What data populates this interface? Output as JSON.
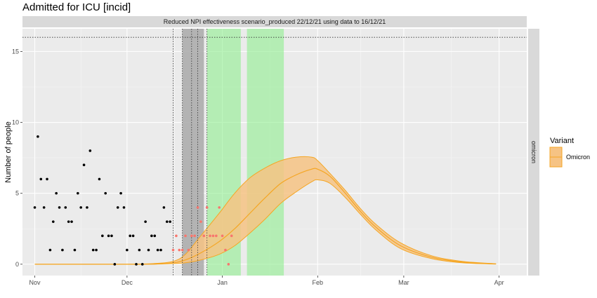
{
  "chart_data": {
    "type": "line",
    "title": "Admitted for ICU [incid]",
    "strip_top": "Reduced NPI effectiveness scenario_produced 22/12/21 using data to 16/12/21",
    "strip_right": "omicron",
    "xlabel": "",
    "ylabel": "Number of people",
    "x_ticks": [
      {
        "label": "Nov",
        "date": "2021-11-01"
      },
      {
        "label": "Dec",
        "date": "2021-12-01"
      },
      {
        "label": "Jan",
        "date": "2022-01-01"
      },
      {
        "label": "Feb",
        "date": "2022-02-01"
      },
      {
        "label": "Mar",
        "date": "2022-03-01"
      },
      {
        "label": "Apr",
        "date": "2022-04-01"
      }
    ],
    "xlim": [
      "2021-10-28",
      "2022-04-10"
    ],
    "y_ticks": [
      0,
      5,
      10,
      15
    ],
    "ylim": [
      -0.8,
      16.6
    ],
    "grid": true,
    "hline_dotted": 16,
    "vlines_dotted": [
      "2021-12-16",
      "2021-12-19",
      "2021-12-22",
      "2021-12-24",
      "2021-12-27"
    ],
    "shaded_grey": {
      "start": "2021-12-19",
      "end": "2021-12-26"
    },
    "shaded_green": [
      {
        "start": "2021-12-27",
        "end": "2022-01-07"
      },
      {
        "start": "2022-01-09",
        "end": "2022-01-21"
      }
    ],
    "observed_black": [
      {
        "x": "2021-11-01",
        "y": 4
      },
      {
        "x": "2021-11-02",
        "y": 9
      },
      {
        "x": "2021-11-03",
        "y": 6
      },
      {
        "x": "2021-11-04",
        "y": 4
      },
      {
        "x": "2021-11-05",
        "y": 6
      },
      {
        "x": "2021-11-06",
        "y": 1
      },
      {
        "x": "2021-11-07",
        "y": 3
      },
      {
        "x": "2021-11-08",
        "y": 5
      },
      {
        "x": "2021-11-09",
        "y": 4
      },
      {
        "x": "2021-11-10",
        "y": 1
      },
      {
        "x": "2021-11-11",
        "y": 4
      },
      {
        "x": "2021-11-12",
        "y": 3
      },
      {
        "x": "2021-11-13",
        "y": 3
      },
      {
        "x": "2021-11-14",
        "y": 1
      },
      {
        "x": "2021-11-15",
        "y": 5
      },
      {
        "x": "2021-11-16",
        "y": 4
      },
      {
        "x": "2021-11-17",
        "y": 7
      },
      {
        "x": "2021-11-18",
        "y": 4
      },
      {
        "x": "2021-11-19",
        "y": 8
      },
      {
        "x": "2021-11-20",
        "y": 1
      },
      {
        "x": "2021-11-21",
        "y": 1
      },
      {
        "x": "2021-11-22",
        "y": 6
      },
      {
        "x": "2021-11-23",
        "y": 2
      },
      {
        "x": "2021-11-24",
        "y": 5
      },
      {
        "x": "2021-11-25",
        "y": 2
      },
      {
        "x": "2021-11-26",
        "y": 2
      },
      {
        "x": "2021-11-27",
        "y": 0
      },
      {
        "x": "2021-11-28",
        "y": 4
      },
      {
        "x": "2021-11-29",
        "y": 5
      },
      {
        "x": "2021-11-30",
        "y": 4
      },
      {
        "x": "2021-12-01",
        "y": 1
      },
      {
        "x": "2021-12-02",
        "y": 2
      },
      {
        "x": "2021-12-03",
        "y": 2
      },
      {
        "x": "2021-12-04",
        "y": 0
      },
      {
        "x": "2021-12-05",
        "y": 1
      },
      {
        "x": "2021-12-06",
        "y": 0
      },
      {
        "x": "2021-12-07",
        "y": 3
      },
      {
        "x": "2021-12-08",
        "y": 1
      },
      {
        "x": "2021-12-09",
        "y": 2
      },
      {
        "x": "2021-12-10",
        "y": 2
      },
      {
        "x": "2021-12-11",
        "y": 1
      },
      {
        "x": "2021-12-12",
        "y": 1
      },
      {
        "x": "2021-12-13",
        "y": 4
      },
      {
        "x": "2021-12-14",
        "y": 3
      },
      {
        "x": "2021-12-15",
        "y": 3
      }
    ],
    "observed_red": [
      {
        "x": "2021-12-16",
        "y": 1
      },
      {
        "x": "2021-12-17",
        "y": 2
      },
      {
        "x": "2021-12-18",
        "y": 1
      },
      {
        "x": "2021-12-19",
        "y": 1
      },
      {
        "x": "2021-12-20",
        "y": 2
      },
      {
        "x": "2021-12-21",
        "y": 1
      },
      {
        "x": "2021-12-22",
        "y": 2
      },
      {
        "x": "2021-12-23",
        "y": 2
      },
      {
        "x": "2021-12-24",
        "y": 4
      },
      {
        "x": "2021-12-25",
        "y": 3
      },
      {
        "x": "2021-12-26",
        "y": 2
      },
      {
        "x": "2021-12-27",
        "y": 4
      },
      {
        "x": "2021-12-28",
        "y": 2
      },
      {
        "x": "2021-12-29",
        "y": 2
      },
      {
        "x": "2021-12-30",
        "y": 2
      },
      {
        "x": "2021-12-31",
        "y": 4
      },
      {
        "x": "2022-01-01",
        "y": 2
      },
      {
        "x": "2022-01-02",
        "y": 1
      },
      {
        "x": "2022-01-03",
        "y": 0
      },
      {
        "x": "2022-01-04",
        "y": 2
      }
    ],
    "series": [
      {
        "name": "Omicron",
        "color": "#F5A623",
        "fill": "#F6C384",
        "x": [
          "2021-11-01",
          "2021-12-01",
          "2021-12-10",
          "2021-12-16",
          "2021-12-20",
          "2021-12-25",
          "2021-12-31",
          "2022-01-05",
          "2022-01-10",
          "2022-01-15",
          "2022-01-20",
          "2022-01-25",
          "2022-01-30",
          "2022-02-01",
          "2022-02-05",
          "2022-02-10",
          "2022-02-15",
          "2022-02-20",
          "2022-02-28",
          "2022-03-10",
          "2022-03-20",
          "2022-03-31"
        ],
        "median": [
          0,
          0,
          0.02,
          0.1,
          0.3,
          0.8,
          1.6,
          2.5,
          3.6,
          4.7,
          5.7,
          6.3,
          6.7,
          6.7,
          6.2,
          5.0,
          3.7,
          2.6,
          1.3,
          0.5,
          0.15,
          0.02
        ],
        "upper": [
          0,
          0,
          0.05,
          0.2,
          0.7,
          2.0,
          3.6,
          5.0,
          6.1,
          6.8,
          7.3,
          7.55,
          7.55,
          7.3,
          6.4,
          5.2,
          3.9,
          2.8,
          1.5,
          0.6,
          0.2,
          0.03
        ],
        "lower": [
          0,
          0,
          0,
          0.05,
          0.1,
          0.3,
          0.7,
          1.3,
          2.2,
          3.2,
          4.3,
          5.1,
          5.8,
          5.95,
          5.7,
          4.7,
          3.5,
          2.4,
          1.1,
          0.4,
          0.1,
          0.01
        ]
      }
    ],
    "legend": {
      "title": "Variant",
      "position": "right",
      "entries": [
        "Omicron"
      ]
    }
  }
}
